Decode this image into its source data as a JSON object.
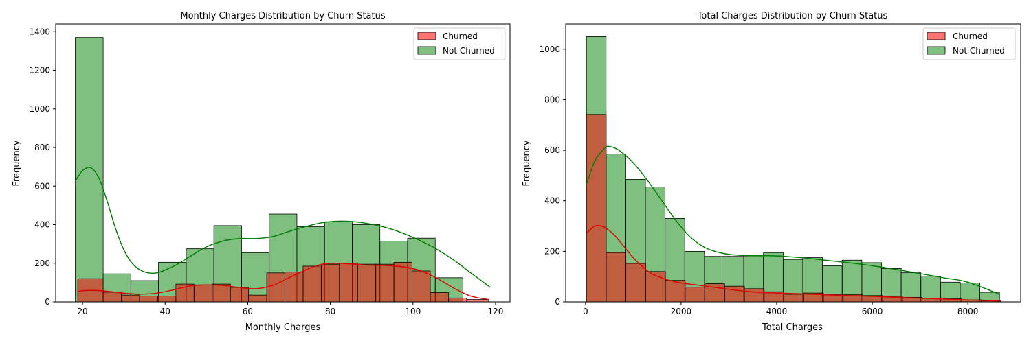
{
  "figure": {
    "background": "#ffffff"
  },
  "colors": {
    "churned_fill": "#ff0000",
    "not_churned_fill": "#008000",
    "churned_kde": "#dd0000",
    "not_churned_kde": "#007a00",
    "edge": "#000000"
  },
  "chart_data": [
    {
      "type": "bar",
      "title": "Monthly Charges Distribution by Churn Status",
      "xlabel": "Monthly Charges",
      "ylabel": "Frequency",
      "xlim": [
        13.5,
        123.5
      ],
      "ylim": [
        0,
        1440
      ],
      "xticks": [
        20,
        40,
        60,
        80,
        100,
        120
      ],
      "yticks": [
        0,
        200,
        400,
        600,
        800,
        1000,
        1200,
        1400
      ],
      "legend": {
        "position": "top-right",
        "entries": [
          "Churned",
          "Not Churned"
        ]
      },
      "series": [
        {
          "name": "Not Churned",
          "bins": [
            [
              18.25,
              25.0
            ],
            [
              25.0,
              31.7
            ],
            [
              31.7,
              38.4
            ],
            [
              38.4,
              45.1
            ],
            [
              45.1,
              51.8
            ],
            [
              51.8,
              58.5
            ],
            [
              58.5,
              65.2
            ],
            [
              65.2,
              71.9
            ],
            [
              71.9,
              78.6
            ],
            [
              78.6,
              85.3
            ],
            [
              85.3,
              92.0
            ],
            [
              92.0,
              98.7
            ],
            [
              98.7,
              105.4
            ],
            [
              105.4,
              112.1
            ],
            [
              112.1,
              118.75
            ]
          ],
          "values": [
            1370,
            145,
            110,
            205,
            275,
            395,
            255,
            455,
            390,
            415,
            400,
            315,
            330,
            125,
            0
          ],
          "kde": [
            [
              18.25,
              625
            ],
            [
              20,
              680
            ],
            [
              22,
              695
            ],
            [
              24,
              640
            ],
            [
              26,
              520
            ],
            [
              28,
              380
            ],
            [
              30,
              270
            ],
            [
              32,
              200
            ],
            [
              34,
              165
            ],
            [
              36,
              150
            ],
            [
              38,
              150
            ],
            [
              40,
              165
            ],
            [
              43,
              195
            ],
            [
              46,
              235
            ],
            [
              50,
              285
            ],
            [
              54,
              315
            ],
            [
              58,
              328
            ],
            [
              62,
              328
            ],
            [
              66,
              338
            ],
            [
              70,
              365
            ],
            [
              74,
              390
            ],
            [
              78,
              410
            ],
            [
              82,
              418
            ],
            [
              86,
              415
            ],
            [
              90,
              402
            ],
            [
              94,
              382
            ],
            [
              98,
              352
            ],
            [
              102,
              315
            ],
            [
              106,
              270
            ],
            [
              110,
              215
            ],
            [
              114,
              150
            ],
            [
              118.75,
              75
            ]
          ]
        },
        {
          "name": "Churned",
          "bins": [
            [
              18.85,
              25.0
            ],
            [
              25.0,
              29.4
            ],
            [
              29.4,
              33.8
            ],
            [
              33.8,
              38.2
            ],
            [
              38.2,
              42.6
            ],
            [
              42.6,
              47.0
            ],
            [
              47.0,
              51.4
            ],
            [
              51.4,
              55.8
            ],
            [
              55.8,
              60.2
            ],
            [
              60.2,
              64.6
            ],
            [
              64.6,
              69.0
            ],
            [
              69.0,
              73.4
            ],
            [
              73.4,
              77.8
            ],
            [
              77.8,
              82.2
            ],
            [
              82.2,
              86.6
            ],
            [
              86.6,
              91.0
            ],
            [
              91.0,
              95.4
            ],
            [
              95.4,
              99.8
            ],
            [
              99.8,
              104.2
            ],
            [
              104.2,
              108.6
            ],
            [
              108.6,
              113.0
            ],
            [
              113.0,
              118.35
            ]
          ],
          "values": [
            120,
            50,
            35,
            30,
            30,
            92,
            88,
            92,
            75,
            35,
            150,
            155,
            185,
            195,
            200,
            195,
            195,
            205,
            160,
            48,
            20,
            12
          ],
          "kde": [
            [
              18.85,
              55
            ],
            [
              22,
              60
            ],
            [
              26,
              55
            ],
            [
              30,
              45
            ],
            [
              34,
              40
            ],
            [
              38,
              45
            ],
            [
              42,
              62
            ],
            [
              46,
              82
            ],
            [
              50,
              88
            ],
            [
              54,
              85
            ],
            [
              58,
              74
            ],
            [
              62,
              68
            ],
            [
              66,
              85
            ],
            [
              70,
              125
            ],
            [
              74,
              165
            ],
            [
              78,
              195
            ],
            [
              82,
              200
            ],
            [
              86,
              195
            ],
            [
              90,
              190
            ],
            [
              94,
              188
            ],
            [
              98,
              180
            ],
            [
              102,
              160
            ],
            [
              106,
              120
            ],
            [
              110,
              70
            ],
            [
              114,
              30
            ],
            [
              118.35,
              12
            ]
          ]
        }
      ]
    },
    {
      "type": "bar",
      "title": "Total Charges Distribution by Churn Status",
      "xlabel": "Total Charges",
      "ylabel": "Frequency",
      "xlim": [
        -415,
        9105
      ],
      "ylim": [
        0,
        1100
      ],
      "xticks": [
        0,
        2000,
        4000,
        6000,
        8000
      ],
      "yticks": [
        0,
        200,
        400,
        600,
        800,
        1000
      ],
      "legend": {
        "position": "top-right",
        "entries": [
          "Churned",
          "Not Churned"
        ]
      },
      "series": [
        {
          "name": "Not Churned",
          "bins": [
            [
              18.8,
              430.4
            ],
            [
              430.4,
              842.0
            ],
            [
              842.0,
              1253.6
            ],
            [
              1253.6,
              1665.2
            ],
            [
              1665.2,
              2076.8
            ],
            [
              2076.8,
              2488.4
            ],
            [
              2488.4,
              2900.0
            ],
            [
              2900.0,
              3311.6
            ],
            [
              3311.6,
              3723.2
            ],
            [
              3723.2,
              4134.8
            ],
            [
              4134.8,
              4546.4
            ],
            [
              4546.4,
              4958.0
            ],
            [
              4958.0,
              5369.6
            ],
            [
              5369.6,
              5781.2
            ],
            [
              5781.2,
              6192.8
            ],
            [
              6192.8,
              6604.4
            ],
            [
              6604.4,
              7016.0
            ],
            [
              7016.0,
              7427.6
            ],
            [
              7427.6,
              7839.2
            ],
            [
              7839.2,
              8250.8
            ],
            [
              8250.8,
              8662.4
            ]
          ],
          "values": [
            1050,
            585,
            485,
            455,
            330,
            200,
            180,
            180,
            182,
            195,
            168,
            175,
            143,
            165,
            155,
            132,
            115,
            102,
            78,
            75,
            38
          ],
          "kde": [
            [
              18.8,
              465
            ],
            [
              200,
              560
            ],
            [
              400,
              608
            ],
            [
              500,
              615
            ],
            [
              700,
              600
            ],
            [
              1000,
              550
            ],
            [
              1300,
              480
            ],
            [
              1600,
              400
            ],
            [
              1900,
              320
            ],
            [
              2200,
              255
            ],
            [
              2500,
              215
            ],
            [
              2800,
              195
            ],
            [
              3100,
              186
            ],
            [
              3500,
              183
            ],
            [
              4000,
              182
            ],
            [
              4500,
              175
            ],
            [
              5000,
              165
            ],
            [
              5500,
              155
            ],
            [
              6000,
              143
            ],
            [
              6500,
              128
            ],
            [
              7000,
              112
            ],
            [
              7500,
              95
            ],
            [
              8000,
              78
            ],
            [
              8662,
              30
            ]
          ]
        },
        {
          "name": "Churned",
          "bins": [
            [
              18.85,
              432.0
            ],
            [
              432.0,
              845.2
            ],
            [
              845.2,
              1258.4
            ],
            [
              1258.4,
              1671.6
            ],
            [
              1671.6,
              2084.8
            ],
            [
              2084.8,
              2498.0
            ],
            [
              2498.0,
              2911.2
            ],
            [
              2911.2,
              3324.4
            ],
            [
              3324.4,
              3737.6
            ],
            [
              3737.6,
              4150.8
            ],
            [
              4150.8,
              4564.0
            ],
            [
              4564.0,
              4977.2
            ],
            [
              4977.2,
              5390.4
            ],
            [
              5390.4,
              5803.6
            ],
            [
              5803.6,
              6216.8
            ],
            [
              6216.8,
              6630.0
            ],
            [
              6630.0,
              7043.2
            ],
            [
              7043.2,
              7456.4
            ],
            [
              7456.4,
              7869.6
            ],
            [
              7869.6,
              8282.8
            ],
            [
              8282.8,
              8684.8
            ]
          ],
          "values": [
            742,
            195,
            152,
            120,
            85,
            58,
            72,
            62,
            52,
            40,
            30,
            35,
            30,
            28,
            25,
            22,
            18,
            14,
            12,
            8,
            4
          ],
          "kde": [
            [
              18.85,
              270
            ],
            [
              150,
              295
            ],
            [
              250,
              302
            ],
            [
              400,
              295
            ],
            [
              600,
              265
            ],
            [
              800,
              220
            ],
            [
              1000,
              175
            ],
            [
              1200,
              138
            ],
            [
              1400,
              110
            ],
            [
              1700,
              88
            ],
            [
              2000,
              75
            ],
            [
              2400,
              65
            ],
            [
              2800,
              55
            ],
            [
              3200,
              45
            ],
            [
              3600,
              38
            ],
            [
              4000,
              35
            ],
            [
              4500,
              32
            ],
            [
              5000,
              28
            ],
            [
              5500,
              25
            ],
            [
              6000,
              22
            ],
            [
              6500,
              18
            ],
            [
              7000,
              15
            ],
            [
              7500,
              11
            ],
            [
              8000,
              8
            ],
            [
              8684,
              3
            ]
          ]
        }
      ]
    }
  ]
}
